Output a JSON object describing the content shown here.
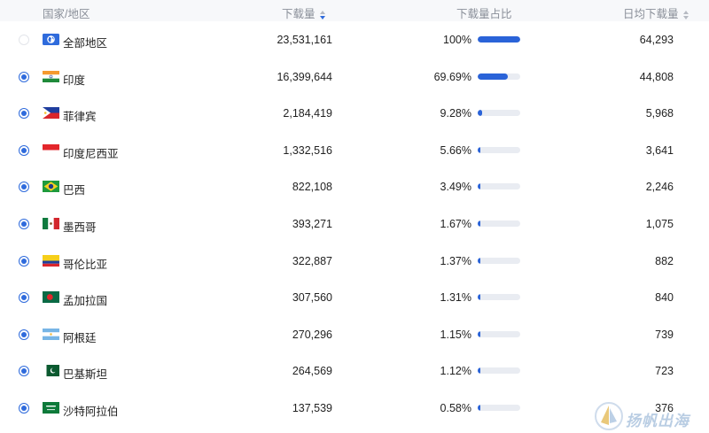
{
  "header": {
    "country": "国家/地区",
    "downloads": "下载量",
    "share": "下载量占比",
    "daily": "日均下载量"
  },
  "rows": [
    {
      "name": "全部地区",
      "downloads": "23,531,161",
      "share": "100%",
      "share_value": 100,
      "daily": "64,293",
      "flag": "globe-icon",
      "selected": false
    },
    {
      "name": "印度",
      "downloads": "16,399,644",
      "share": "69.69%",
      "share_value": 69.69,
      "daily": "44,808",
      "flag": "india-flag-icon",
      "selected": true
    },
    {
      "name": "菲律宾",
      "downloads": "2,184,419",
      "share": "9.28%",
      "share_value": 9.28,
      "daily": "5,968",
      "flag": "philippines-flag-icon",
      "selected": true
    },
    {
      "name": "印度尼西亚",
      "downloads": "1,332,516",
      "share": "5.66%",
      "share_value": 5.66,
      "daily": "3,641",
      "flag": "indonesia-flag-icon",
      "selected": true
    },
    {
      "name": "巴西",
      "downloads": "822,108",
      "share": "3.49%",
      "share_value": 3.49,
      "daily": "2,246",
      "flag": "brazil-flag-icon",
      "selected": true
    },
    {
      "name": "墨西哥",
      "downloads": "393,271",
      "share": "1.67%",
      "share_value": 1.67,
      "daily": "1,075",
      "flag": "mexico-flag-icon",
      "selected": true
    },
    {
      "name": "哥伦比亚",
      "downloads": "322,887",
      "share": "1.37%",
      "share_value": 1.37,
      "daily": "882",
      "flag": "colombia-flag-icon",
      "selected": true
    },
    {
      "name": "孟加拉国",
      "downloads": "307,560",
      "share": "1.31%",
      "share_value": 1.31,
      "daily": "840",
      "flag": "bangladesh-flag-icon",
      "selected": true
    },
    {
      "name": "阿根廷",
      "downloads": "270,296",
      "share": "1.15%",
      "share_value": 1.15,
      "daily": "739",
      "flag": "argentina-flag-icon",
      "selected": true
    },
    {
      "name": "巴基斯坦",
      "downloads": "264,569",
      "share": "1.12%",
      "share_value": 1.12,
      "daily": "723",
      "flag": "pakistan-flag-icon",
      "selected": true
    },
    {
      "name": "沙特阿拉伯",
      "downloads": "137,539",
      "share": "0.58%",
      "share_value": 0.58,
      "daily": "376",
      "flag": "saudi-arabia-flag-icon",
      "selected": true
    }
  ],
  "watermark": "扬帆出海",
  "colors": {
    "accent": "#2f6bdc",
    "bar_fill": "#2a63d8",
    "bar_track": "#e9ecf2",
    "header_bg": "#f7f8fa"
  }
}
